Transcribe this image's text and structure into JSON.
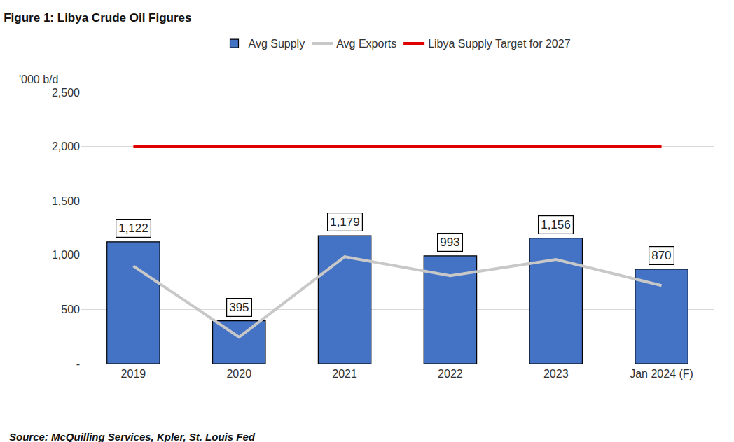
{
  "chart_data": {
    "type": "bar",
    "title": "Figure 1: Libya Crude Oil Figures",
    "y_label": "'000 b/d",
    "source": "Source: McQuilling Services, Kpler, St. Louis Fed",
    "categories": [
      "2019",
      "2020",
      "2021",
      "2022",
      "2023",
      "Jan 2024 (F)"
    ],
    "series": [
      {
        "name": "Avg Supply",
        "type": "bar",
        "color": "#4472c4",
        "data_labels": true,
        "values": [
          1122,
          395,
          1179,
          993,
          1156,
          870
        ],
        "value_labels": [
          "1,122",
          "395",
          "1,179",
          "993",
          "1,156",
          "870"
        ]
      },
      {
        "name": "Avg Exports",
        "type": "line",
        "color": "#c8c8c8",
        "values": [
          900,
          245,
          985,
          810,
          960,
          720
        ]
      },
      {
        "name": "Libya Supply Target for 2027",
        "type": "line",
        "color": "#e00000",
        "values": [
          2000,
          2000,
          2000,
          2000,
          2000,
          2000
        ]
      }
    ],
    "ylim": [
      0,
      2500
    ],
    "yticks": [
      {
        "value": 0,
        "label": "-"
      },
      500,
      {
        "value": 1000,
        "label": "1,000"
      },
      {
        "value": 1500,
        "label": "1,500"
      },
      {
        "value": 2000,
        "label": "2,000"
      },
      {
        "value": 2500,
        "label": "2,500"
      }
    ],
    "grid": true,
    "legend": "top"
  }
}
